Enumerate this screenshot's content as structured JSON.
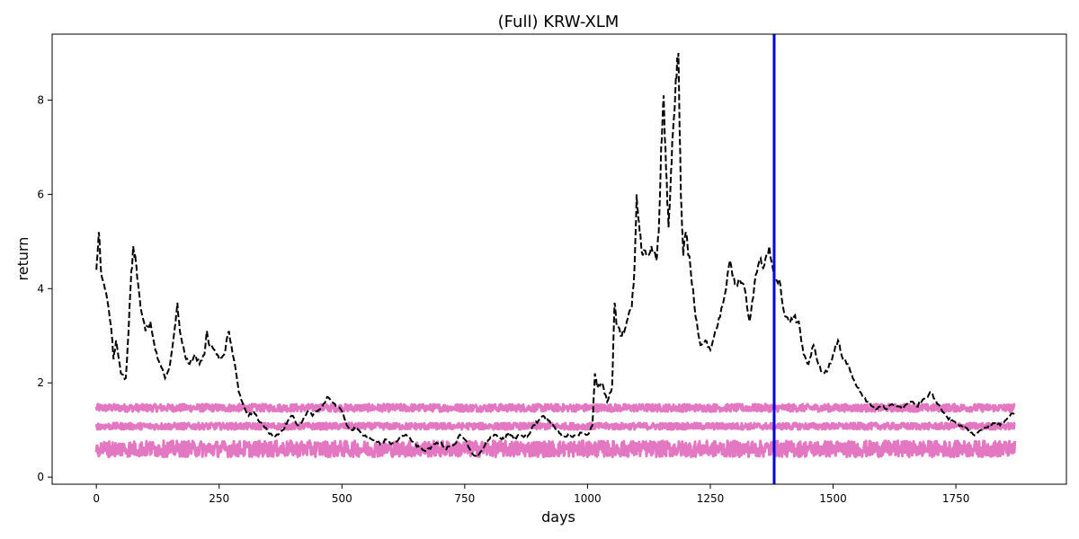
{
  "chart_data": {
    "type": "line",
    "title": "(Full) KRW-XLM",
    "xlabel": "days",
    "ylabel": "return",
    "xlim": [
      -90,
      1975
    ],
    "ylim": [
      -0.15,
      9.4
    ],
    "x_ticks": [
      0,
      250,
      500,
      750,
      1000,
      1250,
      1500,
      1750
    ],
    "y_ticks": [
      0,
      2,
      4,
      6,
      8
    ],
    "grid": false,
    "legend": "none",
    "colors": {
      "main": "#000000",
      "band": "#e377c2",
      "vline": "#0000dd"
    },
    "vline_x": 1380,
    "series": [
      {
        "style": "dashed",
        "color": "#000000",
        "points": [
          [
            0,
            4.4
          ],
          [
            5,
            5.2
          ],
          [
            10,
            4.3
          ],
          [
            20,
            3.9
          ],
          [
            30,
            3.2
          ],
          [
            35,
            2.5
          ],
          [
            40,
            2.9
          ],
          [
            50,
            2.2
          ],
          [
            60,
            2.1
          ],
          [
            65,
            3.0
          ],
          [
            70,
            4.1
          ],
          [
            75,
            4.9
          ],
          [
            80,
            4.6
          ],
          [
            85,
            4.1
          ],
          [
            90,
            3.6
          ],
          [
            100,
            3.1
          ],
          [
            110,
            3.3
          ],
          [
            120,
            2.7
          ],
          [
            130,
            2.4
          ],
          [
            140,
            2.1
          ],
          [
            150,
            2.4
          ],
          [
            160,
            3.2
          ],
          [
            165,
            3.7
          ],
          [
            170,
            3.1
          ],
          [
            180,
            2.6
          ],
          [
            190,
            2.4
          ],
          [
            200,
            2.6
          ],
          [
            210,
            2.4
          ],
          [
            220,
            2.6
          ],
          [
            225,
            3.1
          ],
          [
            230,
            2.8
          ],
          [
            240,
            2.7
          ],
          [
            250,
            2.5
          ],
          [
            260,
            2.6
          ],
          [
            270,
            3.1
          ],
          [
            280,
            2.5
          ],
          [
            290,
            1.8
          ],
          [
            300,
            1.5
          ],
          [
            310,
            1.3
          ],
          [
            320,
            1.4
          ],
          [
            330,
            1.2
          ],
          [
            340,
            1.1
          ],
          [
            350,
            0.95
          ],
          [
            360,
            0.85
          ],
          [
            370,
            0.9
          ],
          [
            380,
            1.0
          ],
          [
            390,
            1.2
          ],
          [
            400,
            1.3
          ],
          [
            410,
            1.1
          ],
          [
            420,
            1.2
          ],
          [
            430,
            1.4
          ],
          [
            440,
            1.3
          ],
          [
            450,
            1.4
          ],
          [
            460,
            1.5
          ],
          [
            470,
            1.7
          ],
          [
            480,
            1.6
          ],
          [
            490,
            1.5
          ],
          [
            500,
            1.4
          ],
          [
            510,
            1.1
          ],
          [
            520,
            1.0
          ],
          [
            530,
            1.05
          ],
          [
            540,
            0.9
          ],
          [
            550,
            0.85
          ],
          [
            560,
            0.8
          ],
          [
            570,
            0.75
          ],
          [
            580,
            0.7
          ],
          [
            590,
            0.8
          ],
          [
            600,
            0.7
          ],
          [
            610,
            0.75
          ],
          [
            620,
            0.85
          ],
          [
            630,
            0.9
          ],
          [
            640,
            0.8
          ],
          [
            650,
            0.7
          ],
          [
            660,
            0.6
          ],
          [
            670,
            0.55
          ],
          [
            680,
            0.6
          ],
          [
            690,
            0.7
          ],
          [
            700,
            0.75
          ],
          [
            710,
            0.6
          ],
          [
            720,
            0.65
          ],
          [
            730,
            0.7
          ],
          [
            740,
            0.9
          ],
          [
            750,
            0.8
          ],
          [
            760,
            0.6
          ],
          [
            770,
            0.45
          ],
          [
            780,
            0.5
          ],
          [
            790,
            0.65
          ],
          [
            800,
            0.8
          ],
          [
            810,
            0.9
          ],
          [
            820,
            0.85
          ],
          [
            830,
            0.8
          ],
          [
            840,
            0.95
          ],
          [
            850,
            0.8
          ],
          [
            860,
            0.9
          ],
          [
            870,
            0.85
          ],
          [
            880,
            0.9
          ],
          [
            890,
            1.1
          ],
          [
            900,
            1.2
          ],
          [
            910,
            1.3
          ],
          [
            920,
            1.2
          ],
          [
            930,
            1.1
          ],
          [
            940,
            1.0
          ],
          [
            950,
            0.85
          ],
          [
            960,
            0.9
          ],
          [
            970,
            0.85
          ],
          [
            980,
            0.9
          ],
          [
            990,
            0.95
          ],
          [
            1000,
            0.9
          ],
          [
            1010,
            1.1
          ],
          [
            1015,
            2.2
          ],
          [
            1020,
            1.9
          ],
          [
            1030,
            2.0
          ],
          [
            1040,
            1.6
          ],
          [
            1050,
            1.9
          ],
          [
            1055,
            3.7
          ],
          [
            1060,
            3.2
          ],
          [
            1070,
            3.0
          ],
          [
            1080,
            3.3
          ],
          [
            1090,
            3.6
          ],
          [
            1095,
            4.3
          ],
          [
            1100,
            6.0
          ],
          [
            1105,
            5.4
          ],
          [
            1110,
            4.8
          ],
          [
            1120,
            4.7
          ],
          [
            1130,
            4.9
          ],
          [
            1140,
            4.6
          ],
          [
            1145,
            5.2
          ],
          [
            1150,
            7.0
          ],
          [
            1155,
            8.1
          ],
          [
            1160,
            6.5
          ],
          [
            1165,
            5.3
          ],
          [
            1170,
            6.5
          ],
          [
            1175,
            7.5
          ],
          [
            1180,
            8.5
          ],
          [
            1185,
            9.0
          ],
          [
            1190,
            6.0
          ],
          [
            1195,
            4.7
          ],
          [
            1200,
            5.2
          ],
          [
            1210,
            4.4
          ],
          [
            1220,
            3.4
          ],
          [
            1230,
            2.8
          ],
          [
            1240,
            2.9
          ],
          [
            1250,
            2.7
          ],
          [
            1260,
            3.1
          ],
          [
            1270,
            3.4
          ],
          [
            1280,
            3.9
          ],
          [
            1290,
            4.6
          ],
          [
            1300,
            4.1
          ],
          [
            1310,
            4.2
          ],
          [
            1320,
            4.0
          ],
          [
            1330,
            3.3
          ],
          [
            1340,
            4.1
          ],
          [
            1350,
            4.6
          ],
          [
            1360,
            4.5
          ],
          [
            1370,
            4.9
          ],
          [
            1380,
            4.2
          ],
          [
            1390,
            4.2
          ],
          [
            1400,
            3.5
          ],
          [
            1410,
            3.3
          ],
          [
            1420,
            3.4
          ],
          [
            1430,
            3.3
          ],
          [
            1440,
            2.6
          ],
          [
            1450,
            2.4
          ],
          [
            1460,
            2.8
          ],
          [
            1470,
            2.4
          ],
          [
            1480,
            2.2
          ],
          [
            1490,
            2.3
          ],
          [
            1500,
            2.6
          ],
          [
            1510,
            2.9
          ],
          [
            1520,
            2.5
          ],
          [
            1530,
            2.4
          ],
          [
            1540,
            2.1
          ],
          [
            1550,
            1.9
          ],
          [
            1560,
            1.7
          ],
          [
            1570,
            1.6
          ],
          [
            1580,
            1.5
          ],
          [
            1590,
            1.45
          ],
          [
            1600,
            1.5
          ],
          [
            1610,
            1.45
          ],
          [
            1620,
            1.55
          ],
          [
            1630,
            1.5
          ],
          [
            1640,
            1.45
          ],
          [
            1650,
            1.55
          ],
          [
            1660,
            1.6
          ],
          [
            1670,
            1.5
          ],
          [
            1680,
            1.6
          ],
          [
            1690,
            1.7
          ],
          [
            1700,
            1.8
          ],
          [
            1710,
            1.6
          ],
          [
            1720,
            1.45
          ],
          [
            1730,
            1.3
          ],
          [
            1740,
            1.2
          ],
          [
            1750,
            1.15
          ],
          [
            1760,
            1.1
          ],
          [
            1770,
            1.05
          ],
          [
            1780,
            0.95
          ],
          [
            1790,
            0.9
          ],
          [
            1800,
            1.0
          ],
          [
            1810,
            1.05
          ],
          [
            1820,
            1.1
          ],
          [
            1830,
            1.15
          ],
          [
            1840,
            1.1
          ],
          [
            1850,
            1.2
          ],
          [
            1860,
            1.3
          ],
          [
            1870,
            1.4
          ]
        ]
      },
      {
        "style": "noise-band",
        "color": "#e377c2",
        "x_range": [
          0,
          1870
        ],
        "center": 1.47,
        "amplitude": 0.08
      },
      {
        "style": "noise-band",
        "color": "#e377c2",
        "x_range": [
          0,
          1870
        ],
        "center": 1.08,
        "amplitude": 0.07
      },
      {
        "style": "noise-band",
        "color": "#e377c2",
        "x_range": [
          0,
          1870
        ],
        "center": 0.6,
        "amplitude": 0.17
      }
    ]
  }
}
